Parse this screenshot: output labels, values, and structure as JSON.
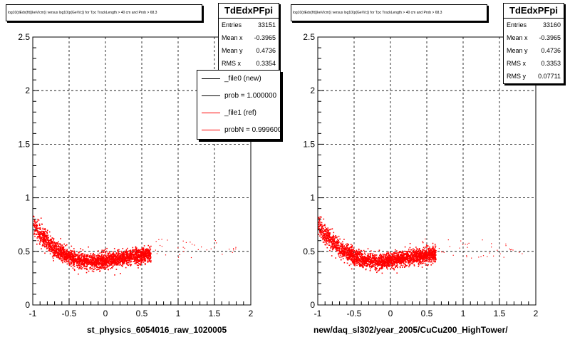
{
  "chart_data": [
    {
      "type": "scatter",
      "title": "log10(dEdx(fit)(keV/cm)) versus log10(p(GeV/c)) for Tpc TrackLength > 40 cm and Prob > 68.3",
      "xlabel": "st_physics_6054016_raw_1020005",
      "ylabel": "",
      "xlim": [
        -1,
        2
      ],
      "ylim": [
        0,
        2.5
      ],
      "x_ticks": [
        "-1",
        "-0.5",
        "0",
        "0.5",
        "1",
        "1.5",
        "2"
      ],
      "y_ticks": [
        "0",
        "0.5",
        "1",
        "1.5",
        "2",
        "2.5"
      ],
      "grid": true,
      "marker_color": "#ff0000",
      "band": {
        "x": [
          -1.0,
          -0.9,
          -0.8,
          -0.7,
          -0.6,
          -0.5,
          -0.4,
          -0.3,
          -0.2,
          -0.1,
          0.0,
          0.1,
          0.2,
          0.3,
          0.4,
          0.5,
          0.6
        ],
        "y": [
          0.75,
          0.66,
          0.59,
          0.53,
          0.49,
          0.45,
          0.43,
          0.42,
          0.41,
          0.41,
          0.42,
          0.43,
          0.44,
          0.45,
          0.46,
          0.47,
          0.48
        ]
      },
      "stats": {
        "name": "TdEdxPFpi",
        "rows": [
          {
            "label": "Entries",
            "value": "33151"
          },
          {
            "label": "Mean x",
            "value": "-0.3965"
          },
          {
            "label": "Mean y",
            "value": "0.4736"
          },
          {
            "label": "RMS x",
            "value": "0.3354"
          }
        ]
      },
      "legend": [
        {
          "label": "_file0 (new)",
          "color": "#000000"
        },
        {
          "label": "prob = 1.000000",
          "color": "#000000"
        },
        {
          "label": "_file1 (ref)",
          "color": "#ff0000"
        },
        {
          "label": "probN = 0.999600",
          "color": "#ff0000"
        }
      ]
    },
    {
      "type": "scatter",
      "title": "log10(dEdx(fit)(keV/cm)) versus log10(p(GeV/c)) for Tpc TrackLength > 40 cm and Prob > 68.3",
      "xlabel": "new/daq_sl302/year_2005/CuCu200_HighTower/",
      "ylabel": "",
      "xlim": [
        -1,
        2
      ],
      "ylim": [
        0,
        2.5
      ],
      "x_ticks": [
        "-1",
        "-0.5",
        "0",
        "0.5",
        "1",
        "1.5",
        "2"
      ],
      "y_ticks": [
        "0",
        "0.5",
        "1",
        "1.5",
        "2",
        "2.5"
      ],
      "grid": true,
      "marker_color": "#ff0000",
      "band": {
        "x": [
          -1.0,
          -0.9,
          -0.8,
          -0.7,
          -0.6,
          -0.5,
          -0.4,
          -0.3,
          -0.2,
          -0.1,
          0.0,
          0.1,
          0.2,
          0.3,
          0.4,
          0.5,
          0.6
        ],
        "y": [
          0.75,
          0.66,
          0.59,
          0.53,
          0.49,
          0.45,
          0.43,
          0.42,
          0.41,
          0.41,
          0.42,
          0.43,
          0.44,
          0.45,
          0.46,
          0.47,
          0.48
        ]
      },
      "stats": {
        "name": "TdEdxPFpi",
        "rows": [
          {
            "label": "Entries",
            "value": "33160"
          },
          {
            "label": "Mean x",
            "value": "-0.3965"
          },
          {
            "label": "Mean y",
            "value": "0.4736"
          },
          {
            "label": "RMS x",
            "value": "0.3353"
          },
          {
            "label": "RMS y",
            "value": "0.07711"
          }
        ]
      }
    }
  ]
}
